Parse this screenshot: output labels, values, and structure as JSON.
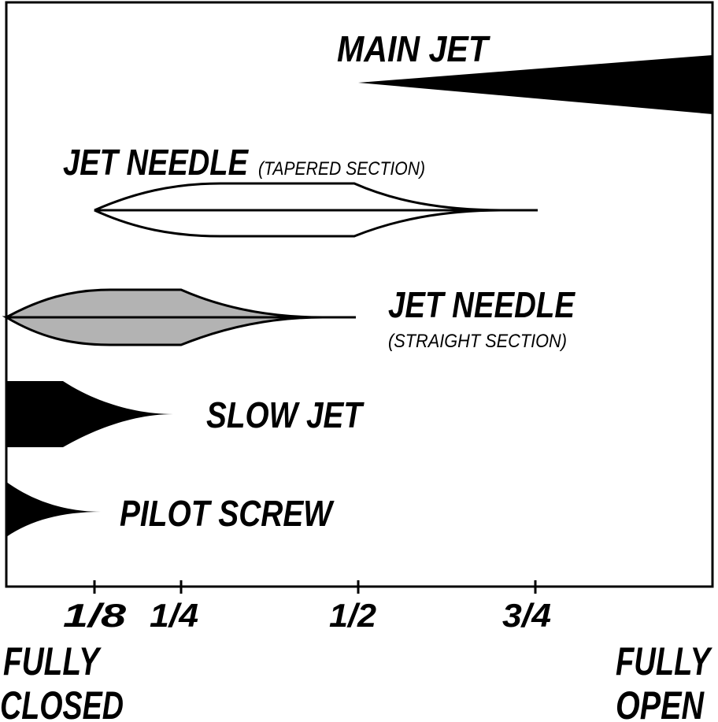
{
  "labels": {
    "main_jet": "MAIN JET",
    "jet_needle_tapered": "JET NEEDLE",
    "tapered_note": "(TAPERED SECTION)",
    "jet_needle_straight": "JET NEEDLE",
    "straight_note": "(STRAIGHT SECTION)",
    "slow_jet": "SLOW JET",
    "pilot_screw": "PILOT SCREW"
  },
  "ticks": [
    "1/8",
    "1/4",
    "1/2",
    "3/4"
  ],
  "fully_closed": [
    "FULLY",
    "CLOSED"
  ],
  "fully_open": [
    "FULLY",
    "OPEN"
  ]
}
